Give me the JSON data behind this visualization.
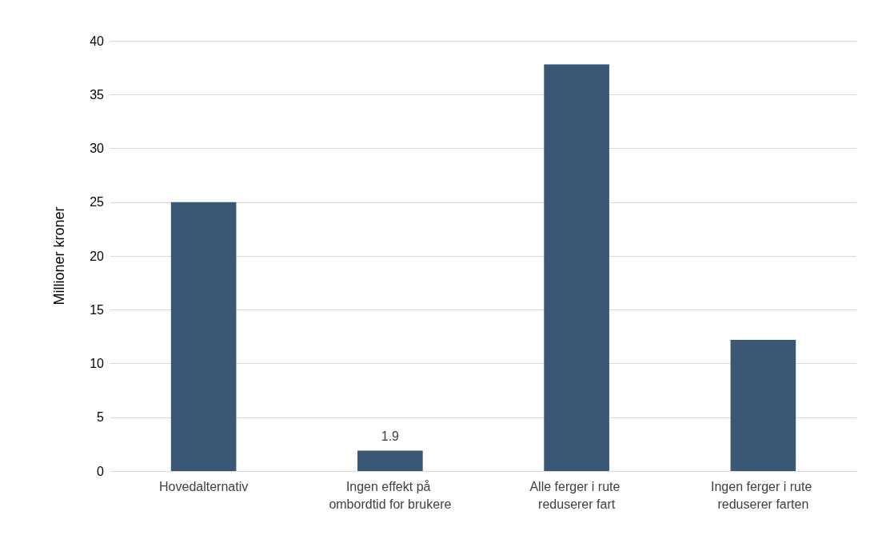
{
  "chart_data": {
    "type": "bar",
    "ylabel": "Millioner kroner",
    "categories": [
      "Hovedalternativ",
      "Ingen effekt på ombordtid for brukere",
      "Alle ferger i rute reduserer fart",
      "Ingen ferger i rute reduserer farten"
    ],
    "values": [
      25,
      1.9,
      37.8,
      12.2
    ],
    "value_labels": [
      null,
      "1.9",
      null,
      null
    ],
    "color": "#3a5775",
    "ylim": [
      0,
      40
    ],
    "yticks": [
      0,
      5,
      10,
      15,
      20,
      25,
      30,
      35,
      40
    ],
    "grid": "y"
  }
}
